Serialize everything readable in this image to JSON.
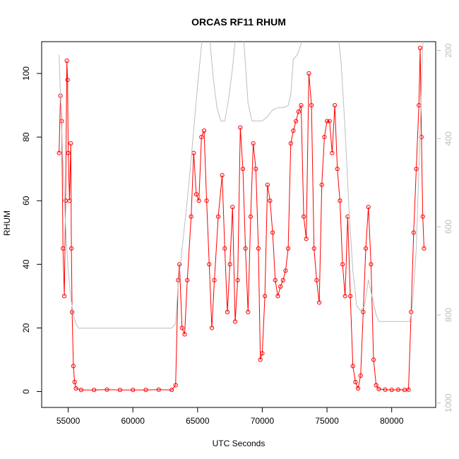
{
  "chart_data": {
    "type": "line",
    "title": "ORCAS RF11 RHUM",
    "xlabel": "UTC Seconds",
    "ylabel": "RHUM",
    "xlim": [
      52950,
      83400
    ],
    "ylim": [
      -5,
      110
    ],
    "x_ticks": [
      55000,
      60000,
      65000,
      70000,
      75000,
      80000
    ],
    "y_ticks": [
      0,
      20,
      40,
      60,
      80,
      100
    ],
    "y2_ticks": [
      200,
      400,
      600,
      800,
      1000
    ],
    "y2_lim": [
      1010,
      180
    ],
    "y2_reversed": true,
    "grid": false,
    "series": [
      {
        "color": "#ff0000",
        "style": "line+open-circles",
        "axis": "left",
        "points": [
          [
            54300,
            75
          ],
          [
            54400,
            93
          ],
          [
            54500,
            85
          ],
          [
            54600,
            45
          ],
          [
            54700,
            30
          ],
          [
            54800,
            60
          ],
          [
            54900,
            104
          ],
          [
            54950,
            98
          ],
          [
            55000,
            75
          ],
          [
            55100,
            60
          ],
          [
            55200,
            78
          ],
          [
            55250,
            45
          ],
          [
            55300,
            25
          ],
          [
            55400,
            8
          ],
          [
            55500,
            3
          ],
          [
            55600,
            1
          ],
          [
            56000,
            0.5
          ],
          [
            57000,
            0.5
          ],
          [
            58000,
            0.6
          ],
          [
            59000,
            0.5
          ],
          [
            60000,
            0.5
          ],
          [
            61000,
            0.5
          ],
          [
            62000,
            0.6
          ],
          [
            63000,
            0.5
          ],
          [
            63300,
            2
          ],
          [
            63500,
            35
          ],
          [
            63600,
            40
          ],
          [
            63800,
            20
          ],
          [
            64000,
            18
          ],
          [
            64200,
            35
          ],
          [
            64500,
            55
          ],
          [
            64700,
            75
          ],
          [
            64900,
            62
          ],
          [
            65100,
            60
          ],
          [
            65300,
            80
          ],
          [
            65500,
            82
          ],
          [
            65700,
            60
          ],
          [
            65900,
            40
          ],
          [
            66100,
            20
          ],
          [
            66300,
            35
          ],
          [
            66600,
            55
          ],
          [
            66900,
            68
          ],
          [
            67100,
            45
          ],
          [
            67300,
            25
          ],
          [
            67500,
            40
          ],
          [
            67700,
            58
          ],
          [
            67900,
            22
          ],
          [
            68100,
            35
          ],
          [
            68300,
            83
          ],
          [
            68500,
            70
          ],
          [
            68700,
            45
          ],
          [
            68900,
            25
          ],
          [
            69100,
            55
          ],
          [
            69300,
            78
          ],
          [
            69500,
            70
          ],
          [
            69700,
            45
          ],
          [
            69850,
            10
          ],
          [
            70000,
            12
          ],
          [
            70200,
            30
          ],
          [
            70400,
            65
          ],
          [
            70600,
            60
          ],
          [
            70800,
            50
          ],
          [
            71000,
            35
          ],
          [
            71200,
            30
          ],
          [
            71400,
            33
          ],
          [
            71600,
            35
          ],
          [
            71800,
            38
          ],
          [
            72000,
            45
          ],
          [
            72200,
            78
          ],
          [
            72400,
            82
          ],
          [
            72600,
            85
          ],
          [
            72800,
            88
          ],
          [
            73000,
            90
          ],
          [
            73200,
            55
          ],
          [
            73400,
            48
          ],
          [
            73600,
            100
          ],
          [
            73800,
            90
          ],
          [
            74000,
            45
          ],
          [
            74200,
            35
          ],
          [
            74400,
            28
          ],
          [
            74600,
            65
          ],
          [
            74800,
            80
          ],
          [
            75000,
            85
          ],
          [
            75200,
            85
          ],
          [
            75400,
            75
          ],
          [
            75600,
            90
          ],
          [
            75800,
            70
          ],
          [
            76000,
            60
          ],
          [
            76200,
            40
          ],
          [
            76400,
            30
          ],
          [
            76600,
            55
          ],
          [
            76800,
            30
          ],
          [
            77000,
            8
          ],
          [
            77200,
            3
          ],
          [
            77400,
            1
          ],
          [
            77600,
            5
          ],
          [
            77800,
            25
          ],
          [
            78000,
            45
          ],
          [
            78200,
            58
          ],
          [
            78400,
            40
          ],
          [
            78600,
            10
          ],
          [
            78800,
            2
          ],
          [
            79000,
            0.8
          ],
          [
            79500,
            0.6
          ],
          [
            80000,
            0.5
          ],
          [
            80500,
            0.6
          ],
          [
            81000,
            0.5
          ],
          [
            81300,
            0.6
          ],
          [
            81500,
            25
          ],
          [
            81700,
            50
          ],
          [
            81900,
            70
          ],
          [
            82100,
            90
          ],
          [
            82200,
            108
          ],
          [
            82300,
            80
          ],
          [
            82400,
            55
          ],
          [
            82500,
            45
          ]
        ]
      },
      {
        "color": "#bebebe",
        "style": "line",
        "axis": "right",
        "points": [
          [
            54300,
            210
          ],
          [
            54400,
            300
          ],
          [
            54600,
            460
          ],
          [
            54800,
            600
          ],
          [
            55000,
            700
          ],
          [
            55200,
            760
          ],
          [
            55400,
            800
          ],
          [
            55600,
            820
          ],
          [
            55800,
            830
          ],
          [
            56500,
            830
          ],
          [
            60000,
            830
          ],
          [
            63000,
            830
          ],
          [
            63300,
            820
          ],
          [
            63500,
            730
          ],
          [
            63800,
            650
          ],
          [
            64100,
            570
          ],
          [
            64400,
            480
          ],
          [
            64700,
            380
          ],
          [
            65000,
            280
          ],
          [
            65300,
            190
          ],
          [
            65600,
            120
          ],
          [
            65900,
            160
          ],
          [
            66200,
            260
          ],
          [
            66500,
            330
          ],
          [
            66800,
            360
          ],
          [
            67100,
            360
          ],
          [
            67400,
            310
          ],
          [
            67700,
            240
          ],
          [
            68000,
            150
          ],
          [
            68300,
            100
          ],
          [
            68600,
            190
          ],
          [
            68900,
            320
          ],
          [
            69200,
            360
          ],
          [
            69600,
            360
          ],
          [
            70000,
            360
          ],
          [
            70400,
            350
          ],
          [
            70800,
            335
          ],
          [
            71200,
            330
          ],
          [
            71600,
            330
          ],
          [
            72000,
            325
          ],
          [
            72200,
            300
          ],
          [
            72400,
            220
          ],
          [
            72700,
            210
          ],
          [
            73000,
            185
          ],
          [
            73200,
            155
          ],
          [
            73400,
            160
          ],
          [
            73800,
            165
          ],
          [
            74000,
            150
          ],
          [
            74600,
            160
          ],
          [
            75000,
            162
          ],
          [
            75500,
            140
          ],
          [
            75800,
            150
          ],
          [
            76100,
            230
          ],
          [
            76400,
            380
          ],
          [
            76700,
            560
          ],
          [
            77000,
            700
          ],
          [
            77300,
            780
          ],
          [
            77600,
            790
          ],
          [
            77900,
            780
          ],
          [
            78200,
            720
          ],
          [
            78500,
            760
          ],
          [
            78800,
            800
          ],
          [
            79000,
            815
          ],
          [
            80000,
            815
          ],
          [
            81000,
            815
          ],
          [
            81400,
            815
          ],
          [
            81600,
            780
          ],
          [
            81900,
            650
          ],
          [
            82200,
            380
          ],
          [
            82400,
            190
          ],
          [
            82600,
            140
          ]
        ]
      }
    ]
  }
}
